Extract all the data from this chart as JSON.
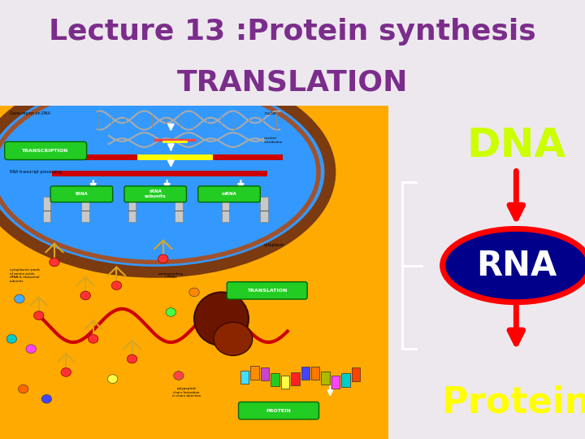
{
  "title_line1": "Lecture 13 :Protein synthesis",
  "title_line2": "TRANSLATION",
  "title_color": "#7B2D8B",
  "title_bg_color": "#EDE8EE",
  "title_fontsize": 26,
  "slide_bg": "#EDE8EE",
  "right_panel_bg": "#00008B",
  "dna_text": "DNA",
  "dna_color": "#CCFF00",
  "rna_text": "RNA",
  "rna_color": "#FFFFFF",
  "rna_ellipse_color": "#FF0000",
  "protein_text": "Protein",
  "protein_color": "#FFFF00",
  "arrow_color": "#FF0000",
  "bracket_color": "#FFFFFF"
}
